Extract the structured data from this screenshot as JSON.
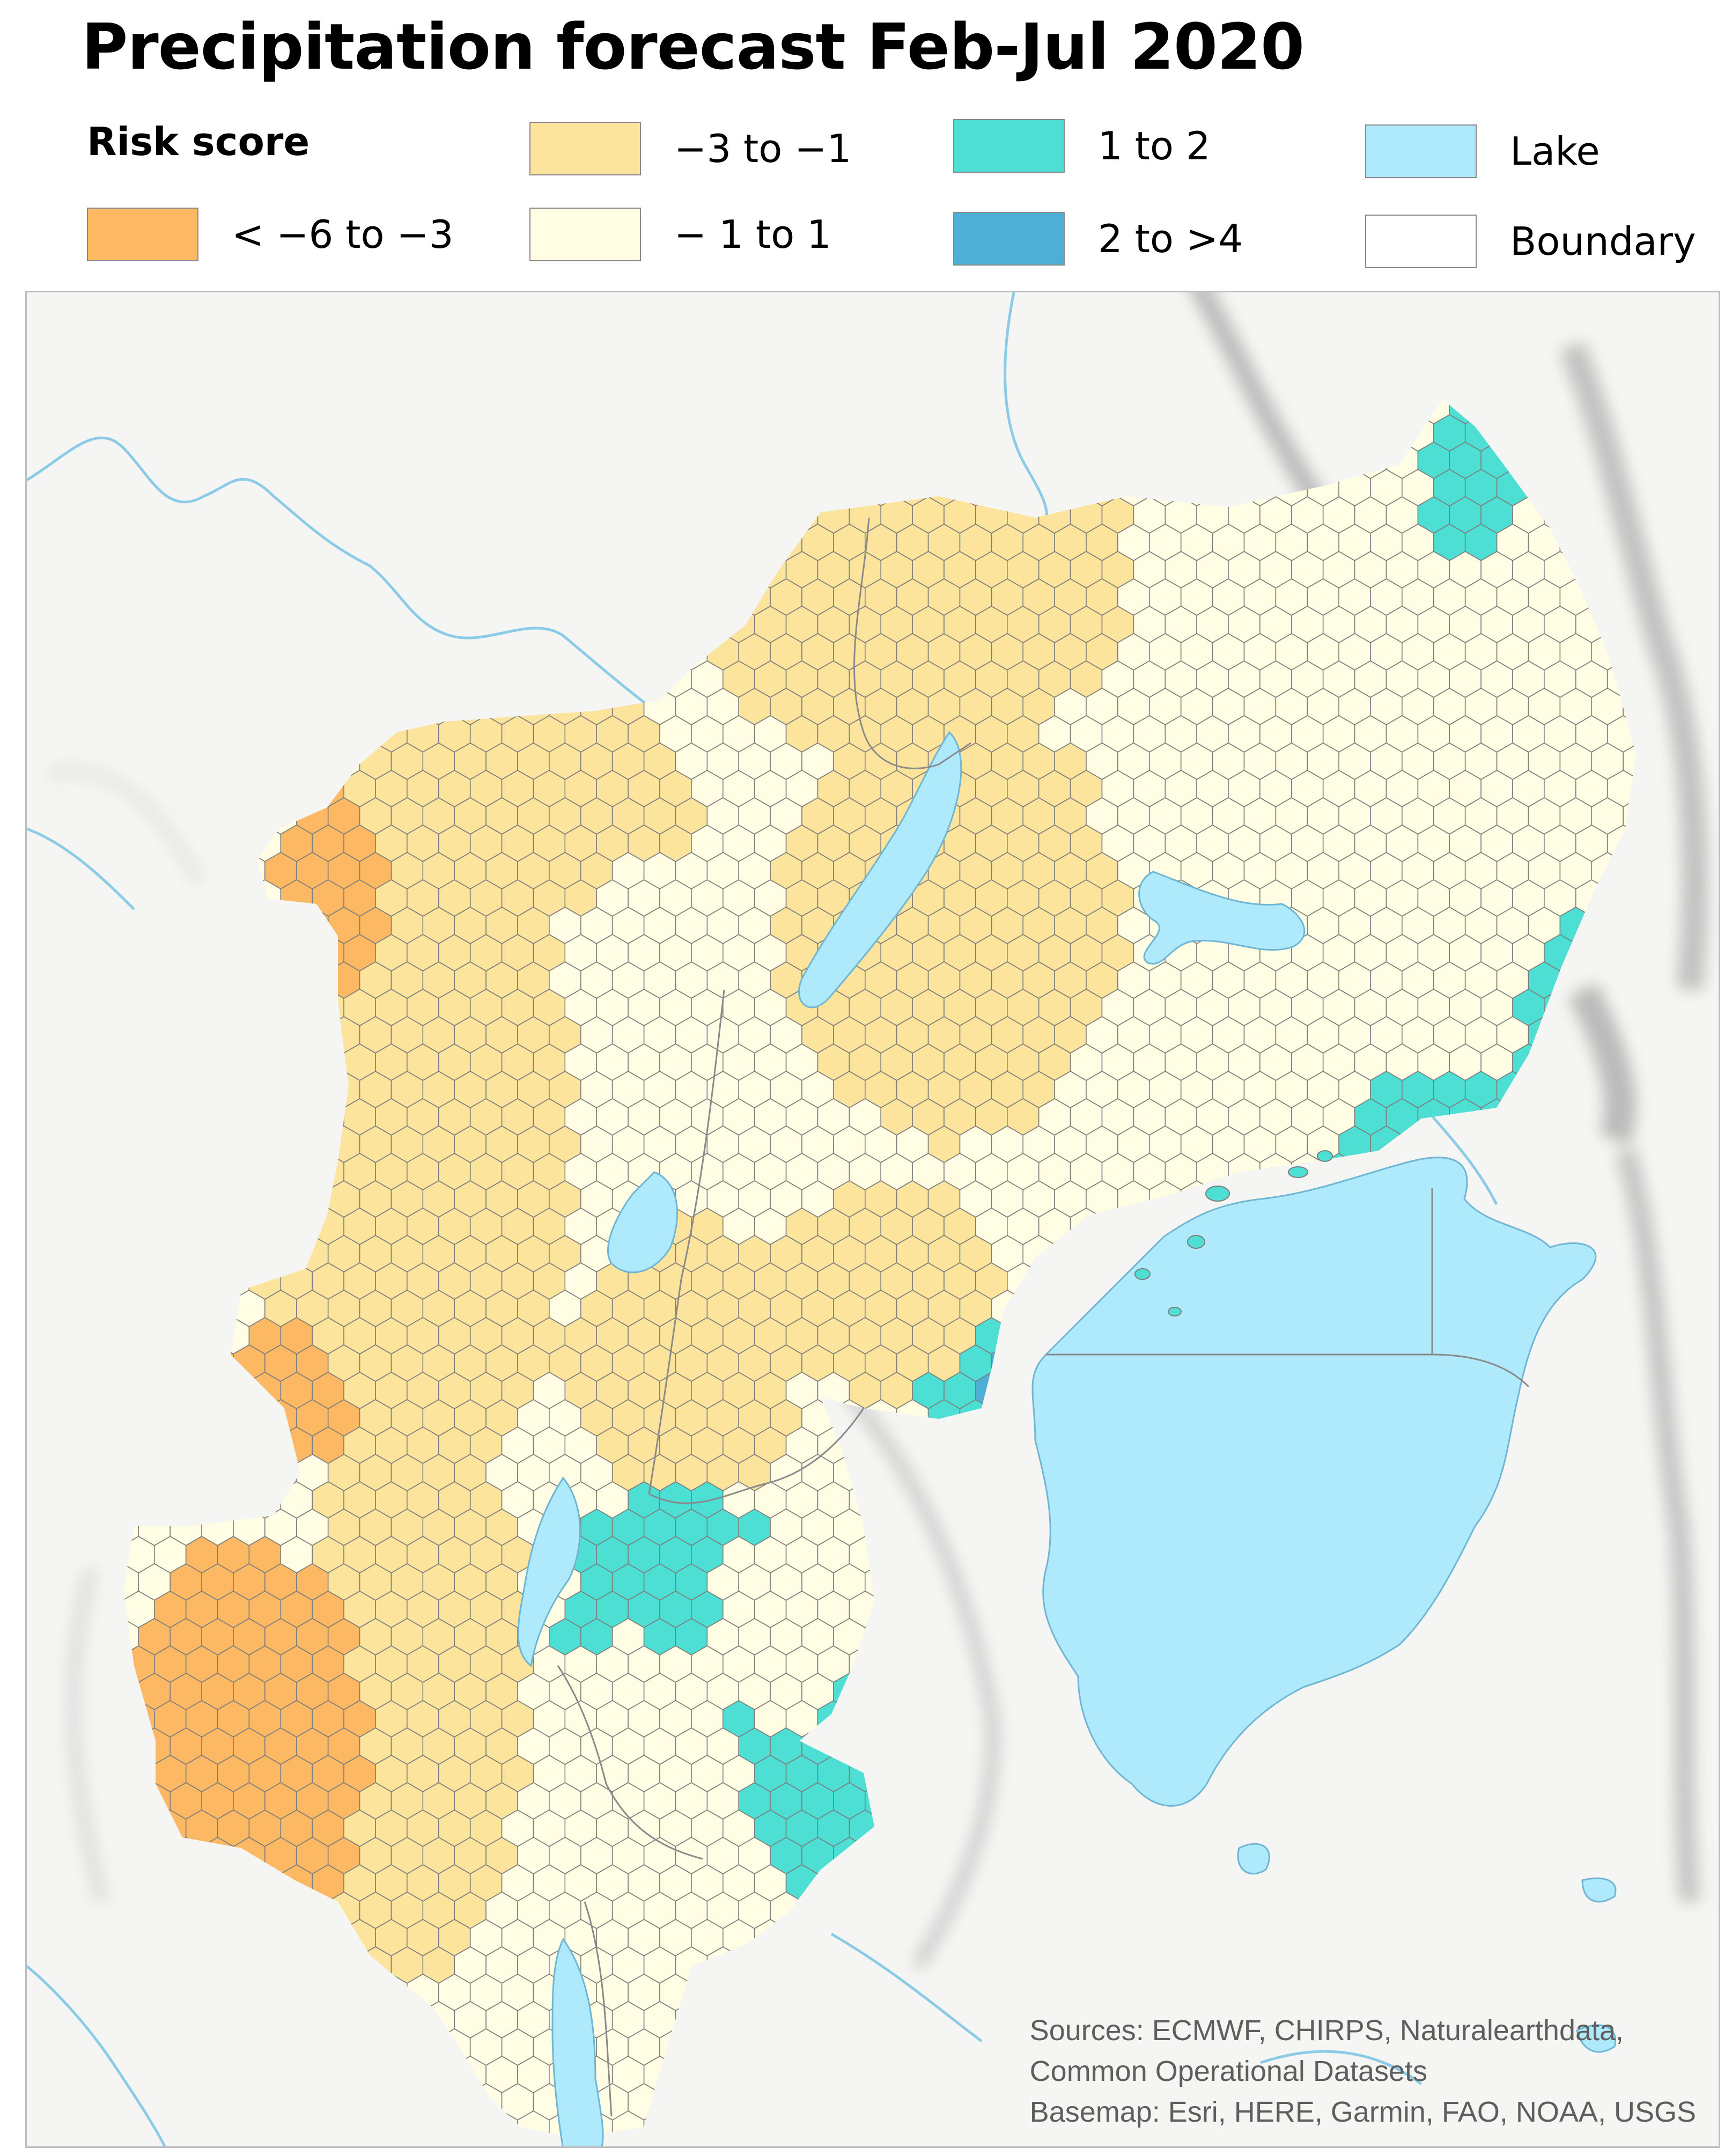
{
  "title": "Precipitation forecast Feb-Jul 2020",
  "legend": {
    "heading": "Risk score",
    "items": [
      {
        "key": "severe_dry",
        "label": "< −6 to −3",
        "color": "#fdb863"
      },
      {
        "key": "dry",
        "label": "−3 to −1",
        "color": "#fde49c"
      },
      {
        "key": "normal",
        "label": "− 1 to 1",
        "color": "#fffde3"
      },
      {
        "key": "wet",
        "label": "1 to 2",
        "color": "#4ddfd4"
      },
      {
        "key": "very_wet",
        "label": "2 to >4",
        "color": "#4daed6"
      },
      {
        "key": "lake",
        "label": "Lake",
        "color": "#aee9fc"
      },
      {
        "key": "boundary",
        "label": "Boundary",
        "color": "#ffffff"
      }
    ]
  },
  "map": {
    "river_color": "#8ccbe8",
    "hex_outline_color": "#7d7d7d",
    "relief_color": "#8f8f8f"
  },
  "credits": {
    "line1": "Sources: ECMWF, CHIRPS, Naturalearthdata,",
    "line2": "Common Operational Datasets",
    "line3": "Basemap: Esri, HERE, Garmin, FAO, NOAA, USGS"
  }
}
